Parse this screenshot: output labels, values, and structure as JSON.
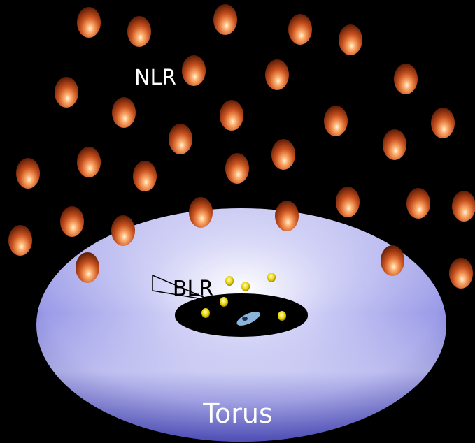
{
  "labels": {
    "nlr": "NLR",
    "blr": "BLR",
    "torus": "Torus"
  }
}
